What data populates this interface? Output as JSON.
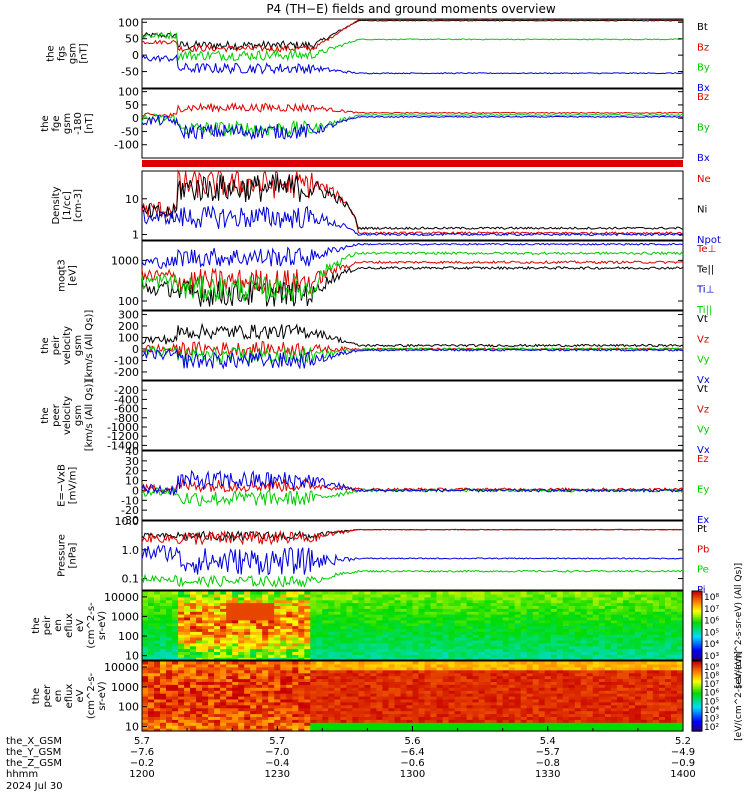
{
  "title": "P4 (TH−E) fields and ground moments overview",
  "colors": {
    "black": "#000000",
    "red": "#dd0000",
    "green": "#00cc00",
    "blue": "#0000dd"
  },
  "chart_data": [
    {
      "type": "line",
      "id": "fgs",
      "ylabel_lines": [
        "the",
        "fgs",
        "gsm",
        "[nT]"
      ],
      "ylim": [
        -100,
        110
      ],
      "yticks": [
        100,
        50,
        0,
        -50
      ],
      "legend": [
        {
          "name": "Bt",
          "color": "black"
        },
        {
          "name": "Bz",
          "color": "red"
        },
        {
          "name": "By",
          "color": "green"
        },
        {
          "name": "Bx",
          "color": "blue"
        }
      ]
    },
    {
      "type": "line",
      "id": "fge",
      "ylabel_lines": [
        "the",
        "fge",
        "gsm",
        "-180",
        "[nT]"
      ],
      "ylim": [
        -150,
        110
      ],
      "yticks": [
        100,
        50,
        0,
        -50,
        -100
      ],
      "legend": [
        {
          "name": "Bz",
          "color": "red"
        },
        {
          "name": "By",
          "color": "green"
        },
        {
          "name": "Bx",
          "color": "blue"
        }
      ]
    },
    {
      "type": "line",
      "id": "density",
      "scale": "log",
      "ylabel_lines": [
        "Density",
        "[1/cc]",
        "[cm-3]"
      ],
      "ylim": [
        0.7,
        60
      ],
      "ytick_labels": [
        "10",
        "1"
      ],
      "yticks": [
        10,
        1
      ],
      "legend": [
        {
          "name": "Ne",
          "color": "red"
        },
        {
          "name": "Ni",
          "color": "black"
        },
        {
          "name": "Npot",
          "color": "blue"
        }
      ]
    },
    {
      "type": "line",
      "id": "temp",
      "scale": "log",
      "ylabel_lines": [
        "moqt3",
        "[eV]"
      ],
      "ylim": [
        60,
        3000
      ],
      "ytick_labels": [
        "1000",
        "100"
      ],
      "yticks": [
        1000,
        100
      ],
      "legend": [
        {
          "name": "Te⊥",
          "color": "red"
        },
        {
          "name": "Te||",
          "color": "black"
        },
        {
          "name": "Ti⊥",
          "color": "blue"
        },
        {
          "name": "Ti||",
          "color": "green"
        }
      ]
    },
    {
      "type": "line",
      "id": "peir_vel",
      "ylabel_lines": [
        "the",
        "peir",
        "velocity",
        "gsm",
        "[km/s (All Qs)]"
      ],
      "ylim": [
        -270,
        330
      ],
      "yticks": [
        300,
        200,
        100,
        0,
        -100,
        -200
      ],
      "legend": [
        {
          "name": "Vt",
          "color": "black"
        },
        {
          "name": "Vz",
          "color": "red"
        },
        {
          "name": "Vy",
          "color": "green"
        },
        {
          "name": "Vx",
          "color": "blue"
        }
      ]
    },
    {
      "type": "line",
      "id": "peer_vel",
      "ylabel_lines": [
        "the",
        "peer",
        "velocity",
        "gsm",
        "[km/s (All Qs)]"
      ],
      "ylim": [
        -1500,
        0
      ],
      "yticks": [
        -200,
        -400,
        -600,
        -800,
        -1000,
        -1200,
        -1400
      ],
      "legend": [
        {
          "name": "Vt",
          "color": "black"
        },
        {
          "name": "Vz",
          "color": "red"
        },
        {
          "name": "Vy",
          "color": "green"
        },
        {
          "name": "Vx",
          "color": "blue"
        }
      ]
    },
    {
      "type": "line",
      "id": "efield",
      "ylabel_lines": [
        "E=−VxB",
        "[mV/m]"
      ],
      "ylim": [
        -30,
        40
      ],
      "yticks": [
        40,
        30,
        20,
        10,
        0,
        -10,
        -20,
        -30
      ],
      "legend": [
        {
          "name": "Ez",
          "color": "red"
        },
        {
          "name": "Ey",
          "color": "green"
        },
        {
          "name": "Ex",
          "color": "blue"
        }
      ]
    },
    {
      "type": "line",
      "id": "pressure",
      "scale": "log",
      "ylabel_lines": [
        "Pressure",
        "[nPa]"
      ],
      "ylim": [
        0.04,
        10
      ],
      "ytick_labels": [
        "10.0",
        "1.0",
        "0.1"
      ],
      "yticks": [
        10,
        1,
        0.1
      ],
      "legend": [
        {
          "name": "Pt",
          "color": "black"
        },
        {
          "name": "Pb",
          "color": "red"
        },
        {
          "name": "Pe",
          "color": "green"
        },
        {
          "name": "Pi",
          "color": "blue"
        }
      ]
    },
    {
      "type": "heatmap",
      "id": "peir_spec",
      "scale": "log",
      "ylabel_lines": [
        "the",
        "peir",
        "en",
        "eflux",
        "eV",
        "(cm^2-s-",
        "sr-eV)"
      ],
      "ylim": [
        6,
        20000
      ],
      "ytick_labels": [
        "10000",
        "1000",
        "100",
        "10"
      ],
      "yticks": [
        10000,
        1000,
        100,
        10
      ],
      "colorbar_ticks": [
        "10⁸",
        "10⁷",
        "10⁶",
        "10⁵",
        "10⁴",
        "10³"
      ],
      "colorbar_label": "[eV/(cm^2-s-sr-eV) (All Qs)]"
    },
    {
      "type": "heatmap",
      "id": "peer_spec",
      "scale": "log",
      "ylabel_lines": [
        "the",
        "peer",
        "en",
        "eflux",
        "eV",
        "(cm^2-s-",
        "sr-eV)"
      ],
      "ylim": [
        6,
        20000
      ],
      "ytick_labels": [
        "10000",
        "1000",
        "100",
        "10"
      ],
      "yticks": [
        10000,
        1000,
        100,
        10
      ],
      "colorbar_ticks": [
        "10⁹",
        "10⁸",
        "10⁷",
        "10⁶",
        "10⁵",
        "10⁴",
        "10³",
        "10²"
      ],
      "colorbar_label": "[eV/(cm^2-s-sr-eV)]"
    }
  ],
  "x_axis": {
    "row_labels": [
      "the_X_GSM",
      "the_Y_GSM",
      "the_Z_GSM",
      "hhmm",
      "2024 Jul 30"
    ],
    "ticks": [
      {
        "minutes": 0,
        "values": [
          "5.7",
          "−7.6",
          "−0.2",
          "1200"
        ]
      },
      {
        "minutes": 30,
        "values": [
          "5.7",
          "−7.0",
          "−0.4",
          "1230"
        ]
      },
      {
        "minutes": 60,
        "values": [
          "5.6",
          "−6.4",
          "−0.6",
          "1300"
        ]
      },
      {
        "minutes": 90,
        "values": [
          "5.4",
          "−5.7",
          "−0.8",
          "1330"
        ]
      },
      {
        "minutes": 120,
        "values": [
          "5.2",
          "−4.9",
          "−0.9",
          "1400"
        ]
      }
    ],
    "range_minutes": [
      0,
      120
    ]
  }
}
